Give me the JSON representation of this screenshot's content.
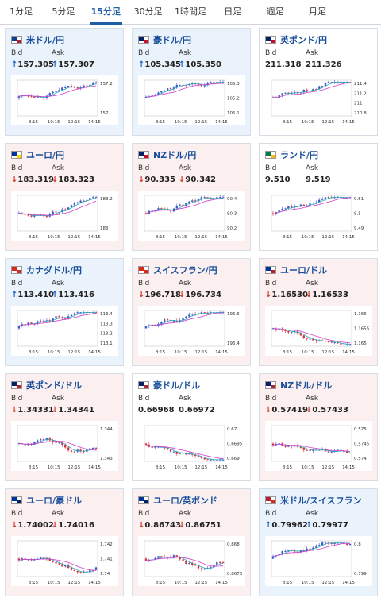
{
  "tabs": [
    {
      "label": "1分足",
      "active": false
    },
    {
      "label": "5分足",
      "active": false
    },
    {
      "label": "15分足",
      "active": true
    },
    {
      "label": "30分足",
      "active": false
    },
    {
      "label": "1時間足",
      "active": false
    },
    {
      "label": "日足",
      "active": false
    },
    {
      "label": "週足",
      "active": false
    },
    {
      "label": "月足",
      "active": false
    }
  ],
  "labels": {
    "bid": "Bid",
    "ask": "Ask"
  },
  "time_labels": [
    "8:15",
    "10:15",
    "12:15",
    "14:15"
  ],
  "colors": {
    "up": "#1e63c9",
    "down": "#d23a2d",
    "ma_short": "#2aa8b8",
    "ma_long": "#d23ed0",
    "candle_up": "#3c5ac8",
    "candle_down": "#d8323a"
  },
  "cards": [
    {
      "pair": "米ドル/円",
      "bg": "blue",
      "bid": "157.305",
      "ask": "157.307",
      "dir": "up",
      "flag": [
        "#0b3d91",
        "#b22234"
      ],
      "y_ticks": [
        "157.2",
        "157"
      ],
      "chart_data": {
        "type": "candlestick",
        "trend": "up"
      }
    },
    {
      "pair": "豪ドル/円",
      "bg": "blue",
      "bid": "105.345",
      "ask": "105.350",
      "dir": "up",
      "flag": [
        "#012169",
        "#c8102e"
      ],
      "y_ticks": [
        "105.3",
        "105.2",
        "105.1"
      ],
      "chart_data": {
        "type": "candlestick",
        "trend": "up"
      }
    },
    {
      "pair": "英ポンド/円",
      "bg": "white",
      "bid": "211.318",
      "ask": "211.326",
      "dir": "none",
      "flag": [
        "#012169",
        "#c8102e"
      ],
      "y_ticks": [
        "211.4",
        "211.2",
        "211",
        "210.8"
      ],
      "chart_data": {
        "type": "candlestick",
        "trend": "up"
      }
    },
    {
      "pair": "ユーロ/円",
      "bg": "pink",
      "bid": "183.319",
      "ask": "183.323",
      "dir": "down",
      "flag": [
        "#003399",
        "#ffcc00"
      ],
      "y_ticks": [
        "183.2",
        "183"
      ],
      "chart_data": {
        "type": "candlestick",
        "trend": "up"
      }
    },
    {
      "pair": "NZドル/円",
      "bg": "pink",
      "bid": "90.335",
      "ask": "90.342",
      "dir": "down",
      "flag": [
        "#012169",
        "#c8102e"
      ],
      "y_ticks": [
        "90.4",
        "90.3",
        "90.2"
      ],
      "chart_data": {
        "type": "candlestick",
        "trend": "up"
      }
    },
    {
      "pair": "ランド/円",
      "bg": "white",
      "bid": "9.510",
      "ask": "9.519",
      "dir": "none",
      "flag": [
        "#007a4d",
        "#ffb612"
      ],
      "y_ticks": [
        "9.51",
        "9.5",
        "9.49"
      ],
      "chart_data": {
        "type": "candlestick",
        "trend": "up"
      }
    },
    {
      "pair": "カナダドル/円",
      "bg": "blue",
      "bid": "113.410",
      "ask": "113.416",
      "dir": "up",
      "flag": [
        "#d52b1e",
        "#d52b1e"
      ],
      "y_ticks": [
        "113.4",
        "113.3",
        "113.2",
        "113.1"
      ],
      "chart_data": {
        "type": "candlestick",
        "trend": "up"
      }
    },
    {
      "pair": "スイスフラン/円",
      "bg": "pink",
      "bid": "196.718",
      "ask": "196.734",
      "dir": "down",
      "flag": [
        "#da291c",
        "#da291c"
      ],
      "y_ticks": [
        "196.6",
        "196.4"
      ],
      "chart_data": {
        "type": "candlestick",
        "trend": "up"
      }
    },
    {
      "pair": "ユーロ/ドル",
      "bg": "pink",
      "bid": "1.16530",
      "ask": "1.16533",
      "dir": "down",
      "flag": [
        "#003399",
        "#b22234"
      ],
      "y_ticks": [
        "1.166",
        "1.1655",
        "1.165"
      ],
      "chart_data": {
        "type": "candlestick",
        "trend": "down"
      }
    },
    {
      "pair": "英ポンド/ドル",
      "bg": "pink",
      "bid": "1.34331",
      "ask": "1.34341",
      "dir": "down",
      "flag": [
        "#012169",
        "#b22234"
      ],
      "y_ticks": [
        "1.344",
        "1.343"
      ],
      "chart_data": {
        "type": "candlestick",
        "trend": "flat"
      }
    },
    {
      "pair": "豪ドル/ドル",
      "bg": "white",
      "bid": "0.66968",
      "ask": "0.66972",
      "dir": "none",
      "flag": [
        "#012169",
        "#b22234"
      ],
      "y_ticks": [
        "0.67",
        "0.6695",
        "0.669"
      ],
      "chart_data": {
        "type": "candlestick",
        "trend": "down"
      }
    },
    {
      "pair": "NZドル/ドル",
      "bg": "pink",
      "bid": "0.57419",
      "ask": "0.57433",
      "dir": "down",
      "flag": [
        "#012169",
        "#b22234"
      ],
      "y_ticks": [
        "0.575",
        "0.5745",
        "0.574"
      ],
      "chart_data": {
        "type": "candlestick",
        "trend": "down"
      }
    },
    {
      "pair": "ユーロ/豪ドル",
      "bg": "pink",
      "bid": "1.74002",
      "ask": "1.74016",
      "dir": "down",
      "flag": [
        "#003399",
        "#012169"
      ],
      "y_ticks": [
        "1.742",
        "1.741",
        "1.74"
      ],
      "chart_data": {
        "type": "candlestick",
        "trend": "flat"
      }
    },
    {
      "pair": "ユーロ/英ポンド",
      "bg": "pink",
      "bid": "0.86743",
      "ask": "0.86751",
      "dir": "down",
      "flag": [
        "#003399",
        "#012169"
      ],
      "y_ticks": [
        "0.868",
        "0.8675"
      ],
      "chart_data": {
        "type": "candlestick",
        "trend": "flat"
      }
    },
    {
      "pair": "米ドル/スイスフラン",
      "bg": "blue",
      "bid": "0.79962",
      "ask": "0.79977",
      "dir": "up",
      "flag": [
        "#b22234",
        "#da291c"
      ],
      "y_ticks": [
        "0.8",
        "0.799"
      ],
      "chart_data": {
        "type": "candlestick",
        "trend": "up"
      }
    }
  ]
}
